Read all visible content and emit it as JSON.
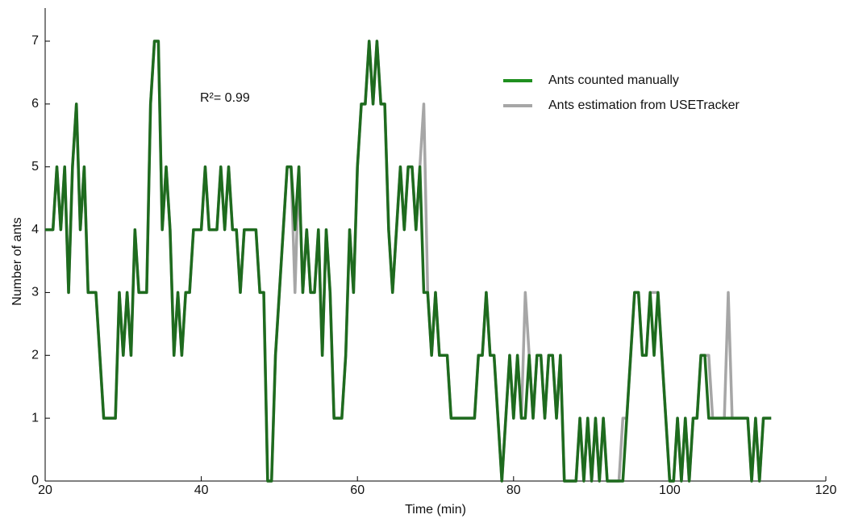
{
  "chart_data": {
    "type": "line",
    "xlabel": "Time (min)",
    "ylabel": "Number of ants",
    "annotation": "R²= 0.99",
    "xlim": [
      20,
      120
    ],
    "xticks": [
      20,
      40,
      60,
      80,
      100,
      120
    ],
    "ylim": [
      0,
      7
    ],
    "yticks": [
      0,
      1,
      2,
      3,
      4,
      5,
      6,
      7
    ],
    "legend": "upper right",
    "x": [
      20,
      20.5,
      21,
      21.5,
      22,
      22.5,
      23,
      23.5,
      24,
      24.5,
      25,
      25.5,
      26,
      26.5,
      27,
      27.5,
      28,
      28.5,
      29,
      29.5,
      30,
      30.5,
      31,
      31.5,
      32,
      32.5,
      33,
      33.5,
      34,
      34.5,
      35,
      35.5,
      36,
      36.5,
      37,
      37.5,
      38,
      38.5,
      39,
      39.5,
      40,
      40.5,
      41,
      41.5,
      42,
      42.5,
      43,
      43.5,
      44,
      44.5,
      45,
      45.5,
      46,
      46.5,
      47,
      47.5,
      48,
      48.5,
      49,
      49.5,
      50,
      50.5,
      51,
      51.5,
      52,
      52.5,
      53,
      53.5,
      54,
      54.5,
      55,
      55.5,
      56,
      56.5,
      57,
      57.5,
      58,
      58.5,
      59,
      59.5,
      60,
      60.5,
      61,
      61.5,
      62,
      62.5,
      63,
      63.5,
      64,
      64.5,
      65,
      65.5,
      66,
      66.5,
      67,
      67.5,
      68,
      68.5,
      69,
      69.5,
      70,
      70.5,
      71,
      71.5,
      72,
      72.5,
      73,
      73.5,
      74,
      74.5,
      75,
      75.5,
      76,
      76.5,
      77,
      77.5,
      78,
      78.5,
      79,
      79.5,
      80,
      80.5,
      81,
      81.5,
      82,
      82.5,
      83,
      83.5,
      84,
      84.5,
      85,
      85.5,
      86,
      86.5,
      87,
      87.5,
      88,
      88.5,
      89,
      89.5,
      90,
      90.5,
      91,
      91.5,
      92,
      92.5,
      93,
      93.5,
      94,
      94.5,
      95,
      95.5,
      96,
      96.5,
      97,
      97.5,
      98,
      98.5,
      99,
      99.5,
      100,
      100.5,
      101,
      101.5,
      102,
      102.5,
      103,
      103.5,
      104,
      104.5,
      105,
      105.5,
      106,
      106.5,
      107,
      107.5,
      108,
      108.5,
      109,
      109.5,
      110,
      110.5,
      111,
      111.5,
      112,
      112.5,
      113
    ],
    "series": [
      {
        "name": "Ants estimation from USETracker",
        "color": "#a6a6a6",
        "values": [
          4,
          4,
          4,
          5,
          4,
          5,
          3,
          5,
          6,
          4,
          5,
          3,
          3,
          3,
          2,
          1,
          1,
          1,
          1,
          3,
          2,
          3,
          2,
          4,
          3,
          3,
          3,
          6,
          7,
          7,
          4,
          5,
          4,
          2,
          3,
          2,
          3,
          3,
          4,
          4,
          4,
          5,
          4,
          4,
          4,
          5,
          4,
          5,
          4,
          4,
          3,
          4,
          4,
          4,
          4,
          3,
          3,
          0,
          0,
          2,
          3,
          4,
          5,
          5,
          3,
          5,
          3,
          4,
          3,
          3,
          4,
          2,
          4,
          3,
          1,
          1,
          1,
          2,
          4,
          3,
          5,
          6,
          6,
          7,
          6,
          7,
          6,
          6,
          4,
          3,
          4,
          5,
          4,
          5,
          5,
          4,
          5,
          6,
          3,
          2,
          3,
          2,
          2,
          2,
          1,
          1,
          1,
          1,
          1,
          1,
          1,
          2,
          2,
          3,
          2,
          2,
          1,
          0,
          1,
          2,
          1,
          2,
          1,
          3,
          2,
          1,
          2,
          2,
          1,
          2,
          2,
          1,
          2,
          0,
          0,
          0,
          0,
          1,
          0,
          1,
          0,
          1,
          0,
          1,
          0,
          0,
          0,
          0,
          1,
          1,
          2,
          3,
          3,
          2,
          2,
          3,
          3,
          3,
          2,
          1,
          0,
          0,
          1,
          0,
          1,
          0,
          1,
          1,
          2,
          2,
          2,
          1,
          1,
          1,
          1,
          3,
          1,
          1,
          1,
          1,
          1,
          0,
          1,
          0,
          1,
          1,
          1
        ]
      },
      {
        "name": "Ants counted manually",
        "color": "#1e6b1e",
        "values": [
          4,
          4,
          4,
          5,
          4,
          5,
          3,
          5,
          6,
          4,
          5,
          3,
          3,
          3,
          2,
          1,
          1,
          1,
          1,
          3,
          2,
          3,
          2,
          4,
          3,
          3,
          3,
          6,
          7,
          7,
          4,
          5,
          4,
          2,
          3,
          2,
          3,
          3,
          4,
          4,
          4,
          5,
          4,
          4,
          4,
          5,
          4,
          5,
          4,
          4,
          3,
          4,
          4,
          4,
          4,
          3,
          3,
          0,
          0,
          2,
          3,
          4,
          5,
          5,
          4,
          5,
          3,
          4,
          3,
          3,
          4,
          2,
          4,
          3,
          1,
          1,
          1,
          2,
          4,
          3,
          5,
          6,
          6,
          7,
          6,
          7,
          6,
          6,
          4,
          3,
          4,
          5,
          4,
          5,
          5,
          4,
          5,
          3,
          3,
          2,
          3,
          2,
          2,
          2,
          1,
          1,
          1,
          1,
          1,
          1,
          1,
          2,
          2,
          3,
          2,
          2,
          1,
          0,
          1,
          2,
          1,
          2,
          1,
          1,
          2,
          1,
          2,
          2,
          1,
          2,
          2,
          1,
          2,
          0,
          0,
          0,
          0,
          1,
          0,
          1,
          0,
          1,
          0,
          1,
          0,
          0,
          0,
          0,
          0,
          1,
          2,
          3,
          3,
          2,
          2,
          3,
          2,
          3,
          2,
          1,
          0,
          0,
          1,
          0,
          1,
          0,
          1,
          1,
          2,
          2,
          1,
          1,
          1,
          1,
          1,
          1,
          1,
          1,
          1,
          1,
          1,
          0,
          1,
          0,
          1,
          1,
          1
        ]
      }
    ]
  }
}
